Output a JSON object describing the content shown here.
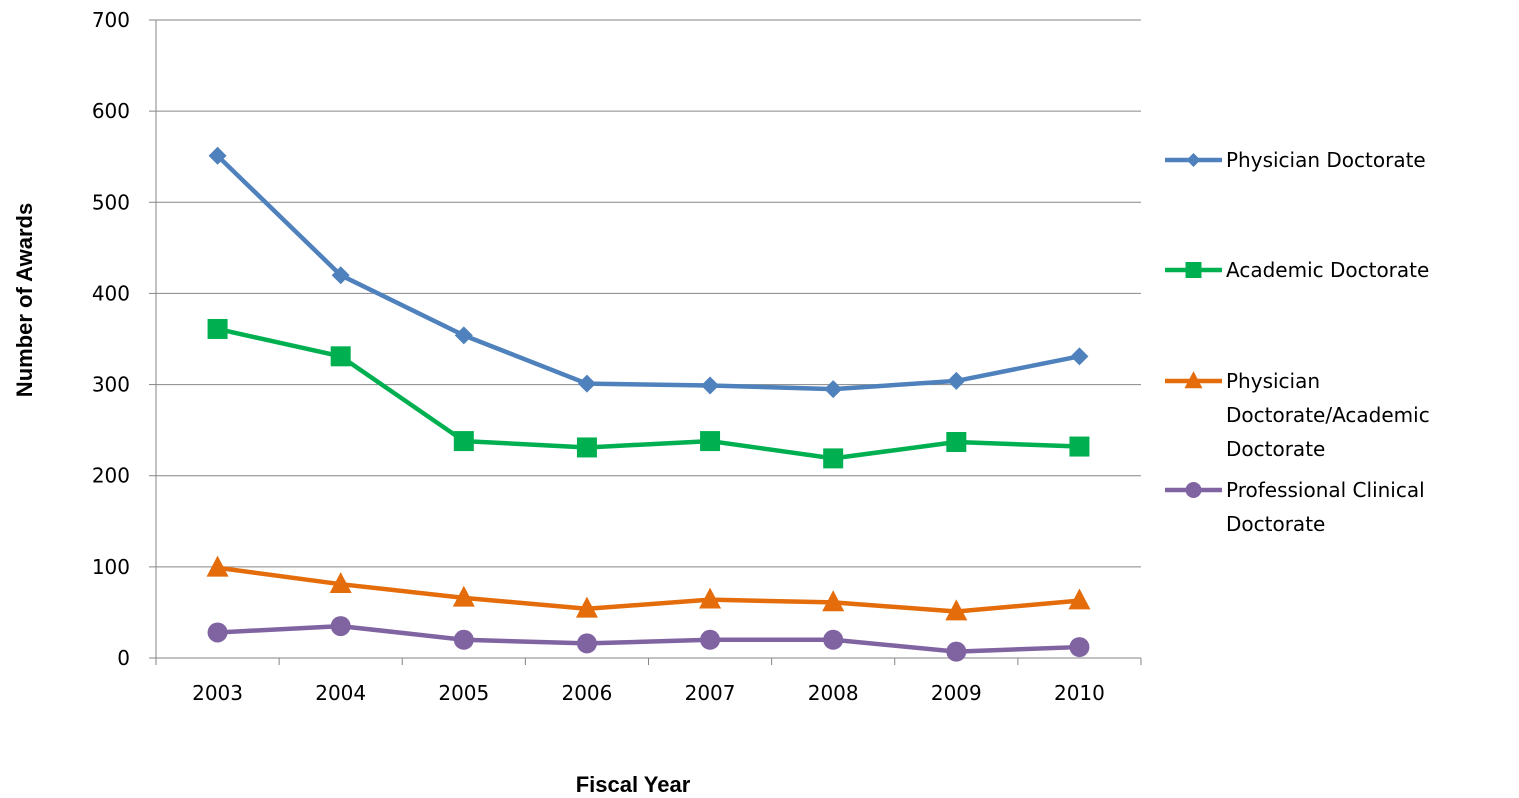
{
  "chart_data": {
    "type": "line",
    "title": "",
    "xlabel": "Fiscal Year",
    "ylabel": "Number of Awards",
    "categories": [
      "2003",
      "2004",
      "2005",
      "2006",
      "2007",
      "2008",
      "2009",
      "2010"
    ],
    "ylim": [
      0,
      700
    ],
    "yticks": [
      "0",
      "100",
      "200",
      "300",
      "400",
      "500",
      "600",
      "700"
    ],
    "grid": "horizontal",
    "legend_position": "right",
    "series": [
      {
        "name": "Physician Doctorate",
        "legend_lines": [
          "Physician Doctorate"
        ],
        "color": "#4F81BD",
        "marker": "diamond",
        "values": [
          551,
          420,
          354,
          301,
          299,
          295,
          304,
          331
        ]
      },
      {
        "name": "Academic Doctorate",
        "legend_lines": [
          "Academic Doctorate"
        ],
        "color": "#00B050",
        "marker": "square",
        "values": [
          361,
          331,
          238,
          231,
          238,
          219,
          237,
          232
        ]
      },
      {
        "name": "Physician Doctorate/Academic Doctorate",
        "legend_lines": [
          "Physician",
          "Doctorate/Academic",
          "Doctorate"
        ],
        "color": "#E46C0A",
        "marker": "triangle",
        "values": [
          99,
          81,
          66,
          54,
          64,
          61,
          51,
          63
        ]
      },
      {
        "name": "Professional Clinical Doctorate",
        "legend_lines": [
          "Professional Clinical",
          "Doctorate"
        ],
        "color": "#8064A2",
        "marker": "circle",
        "values": [
          28,
          35,
          20,
          16,
          20,
          20,
          7,
          12
        ]
      }
    ]
  }
}
